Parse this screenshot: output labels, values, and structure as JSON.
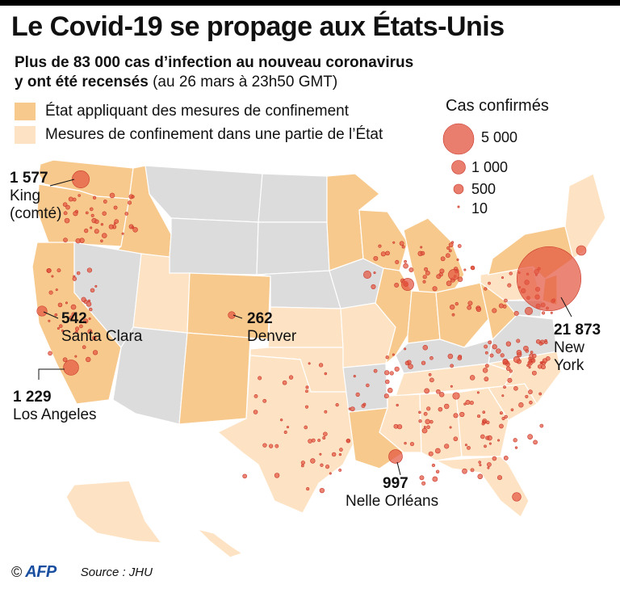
{
  "title": "Le Covid-19 se propage aux États-Unis",
  "subtitle": {
    "line1_bold": "Plus de 83 000 cas d’infection au nouveau coronavirus",
    "line2_bold": "y ont été recensés",
    "line2_normal": " (au 26 mars à 23h50 GMT)"
  },
  "legend": {
    "full": {
      "label": "État appliquant des mesures de confinement",
      "color": "#f7c98d"
    },
    "partial": {
      "label": "Mesures de confinement dans une partie de l’État",
      "color": "#fde3c4"
    },
    "none_color": "#dcdcdc"
  },
  "size_legend": {
    "title": "Cas confirmés",
    "entries": [
      {
        "label": "5 000",
        "cases": 5000
      },
      {
        "label": "1 000",
        "cases": 1000
      },
      {
        "label": "500",
        "cases": 500
      },
      {
        "label": "10",
        "cases": 10
      }
    ],
    "bubble_color": "#e2533d"
  },
  "callouts": {
    "king": {
      "number": "1 577",
      "name1": "King",
      "name2": "(comté)",
      "cases": 1577
    },
    "santa_clara": {
      "number": "542",
      "name1": "Santa Clara",
      "cases": 542
    },
    "denver": {
      "number": "262",
      "name1": "Denver",
      "cases": 262
    },
    "los_angeles": {
      "number": "1 229",
      "name1": "Los Angeles",
      "cases": 1229
    },
    "new_york": {
      "number": "21 873",
      "name1": "New",
      "name2": "York",
      "cases": 21873
    },
    "new_orleans": {
      "number": "997",
      "name1": "Nelle Orléans",
      "cases": 997
    }
  },
  "footer": {
    "copyright": "©",
    "agency": "AFP",
    "source": "Source : JHU"
  }
}
